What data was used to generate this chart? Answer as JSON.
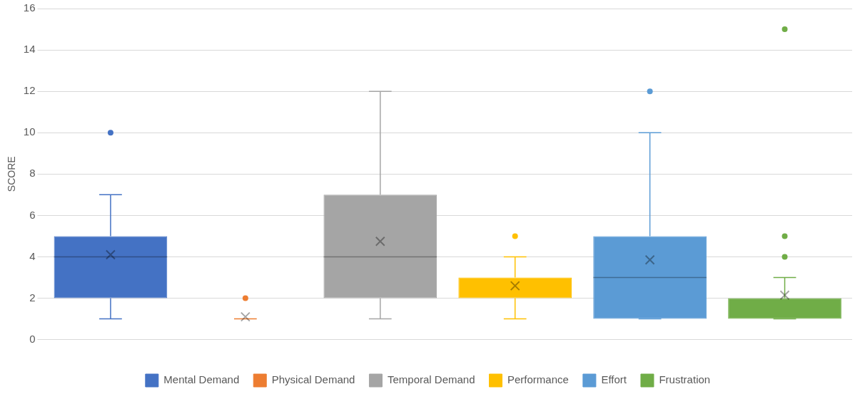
{
  "chart_data": {
    "type": "box",
    "ylabel": "SCORE",
    "categories": [
      null
    ],
    "ylim": [
      0,
      16
    ],
    "yticks": [
      0,
      2,
      4,
      6,
      8,
      10,
      12,
      14,
      16
    ],
    "grid": "y",
    "legend": "bottom",
    "series": [
      {
        "name": "Mental Demand",
        "color": "#4472c4",
        "boxes": [
          {
            "low": 1,
            "q1": 2,
            "median": 4,
            "q3": 5,
            "high": 7,
            "mean": 4.1,
            "outliers": [
              10
            ]
          }
        ]
      },
      {
        "name": "Physical Demand",
        "color": "#ed7d31",
        "boxes": [
          {
            "low": 1,
            "q1": 1,
            "median": 1,
            "q3": 1,
            "high": 1,
            "mean": 1.1,
            "outliers": [
              2
            ]
          }
        ]
      },
      {
        "name": "Temporal Demand",
        "color": "#a5a5a5",
        "boxes": [
          {
            "low": 1,
            "q1": 2,
            "median": 4,
            "q3": 7,
            "high": 12,
            "mean": 4.75
          }
        ]
      },
      {
        "name": "Performance",
        "color": "#ffc000",
        "boxes": [
          {
            "low": 1,
            "q1": 2,
            "median": 3,
            "q3": 3,
            "high": 4,
            "mean": 2.6,
            "outliers": [
              5
            ]
          }
        ]
      },
      {
        "name": "Effort",
        "color": "#5b9bd5",
        "boxes": [
          {
            "low": 1,
            "q1": 1,
            "median": 3,
            "q3": 5,
            "high": 10,
            "mean": 3.85,
            "outliers": [
              12
            ]
          }
        ]
      },
      {
        "name": "Frustration",
        "color": "#70ad47",
        "boxes": [
          {
            "low": 1,
            "q1": 1,
            "median": 2,
            "q3": 2,
            "high": 3,
            "mean": 2.15,
            "outliers": [
              4,
              5,
              15
            ]
          }
        ]
      }
    ]
  }
}
